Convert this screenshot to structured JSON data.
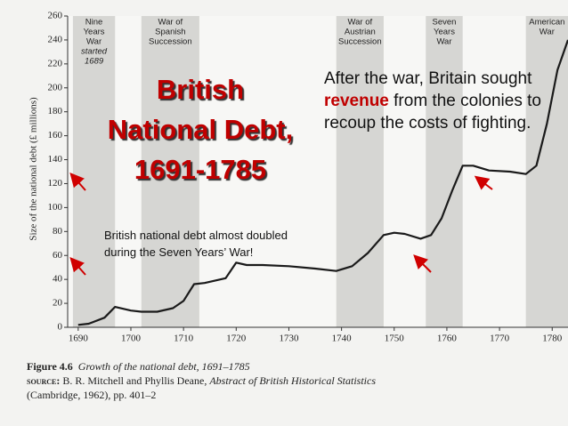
{
  "chart_data": {
    "type": "line",
    "y_axis_label": "Size of the national debt (£ millions)",
    "x": [
      1690,
      1692,
      1695,
      1697,
      1700,
      1702,
      1705,
      1708,
      1710,
      1712,
      1714,
      1718,
      1720,
      1722,
      1725,
      1730,
      1735,
      1739,
      1742,
      1745,
      1748,
      1750,
      1752,
      1755,
      1757,
      1759,
      1761,
      1763,
      1765,
      1768,
      1772,
      1775,
      1777,
      1779,
      1781,
      1783
    ],
    "series": [
      {
        "color": "#1a1a1a",
        "values": [
          2,
          3,
          8,
          17,
          14,
          13,
          13,
          16,
          22,
          36,
          37,
          41,
          54,
          52,
          52,
          51,
          49,
          47,
          51,
          62,
          77,
          79,
          78,
          74,
          77,
          91,
          114,
          135,
          135,
          131,
          130,
          128,
          135,
          170,
          215,
          240
        ]
      }
    ],
    "xlim": [
      1688,
      1783
    ],
    "ylim": [
      0,
      260
    ],
    "xticks": [
      1690,
      1700,
      1710,
      1720,
      1730,
      1740,
      1750,
      1760,
      1770,
      1780
    ],
    "yticks": [
      0,
      20,
      40,
      60,
      80,
      100,
      120,
      140,
      160,
      180,
      200,
      220,
      240,
      260
    ],
    "shaded_periods": [
      {
        "start": 1689,
        "end": 1697,
        "label_lines": [
          "Nine",
          "Years",
          "War"
        ],
        "note_lines": [
          "started",
          "1689"
        ]
      },
      {
        "start": 1702,
        "end": 1713,
        "label_lines": [
          "War of",
          "Spanish",
          "Succession"
        ]
      },
      {
        "start": 1739,
        "end": 1748,
        "label_lines": [
          "War of",
          "Austrian",
          "Succession"
        ]
      },
      {
        "start": 1756,
        "end": 1763,
        "label_lines": [
          "Seven",
          "Years",
          "War"
        ]
      },
      {
        "start": 1775,
        "end": 1783,
        "label_lines": [
          "American",
          "War"
        ]
      }
    ],
    "caption": {
      "figure": "Figure 4.6",
      "title": "Growth of the national debt, 1691–1785",
      "source_label": "source:",
      "source_authors": "B. R. Mitchell and Phyllis Deane,",
      "source_book": "Abstract of British Historical Statistics",
      "source_rest": "(Cambridge, 1962), pp. 401–2"
    }
  },
  "slide": {
    "title_lines": [
      "British",
      "National Debt,",
      "1691-1785"
    ],
    "callout_parts": [
      "After the war, Britain sought ",
      "revenue",
      " from the colonies to recoup the costs of fighting."
    ],
    "note": "British national debt almost doubled during the Seven Years’ War!"
  }
}
